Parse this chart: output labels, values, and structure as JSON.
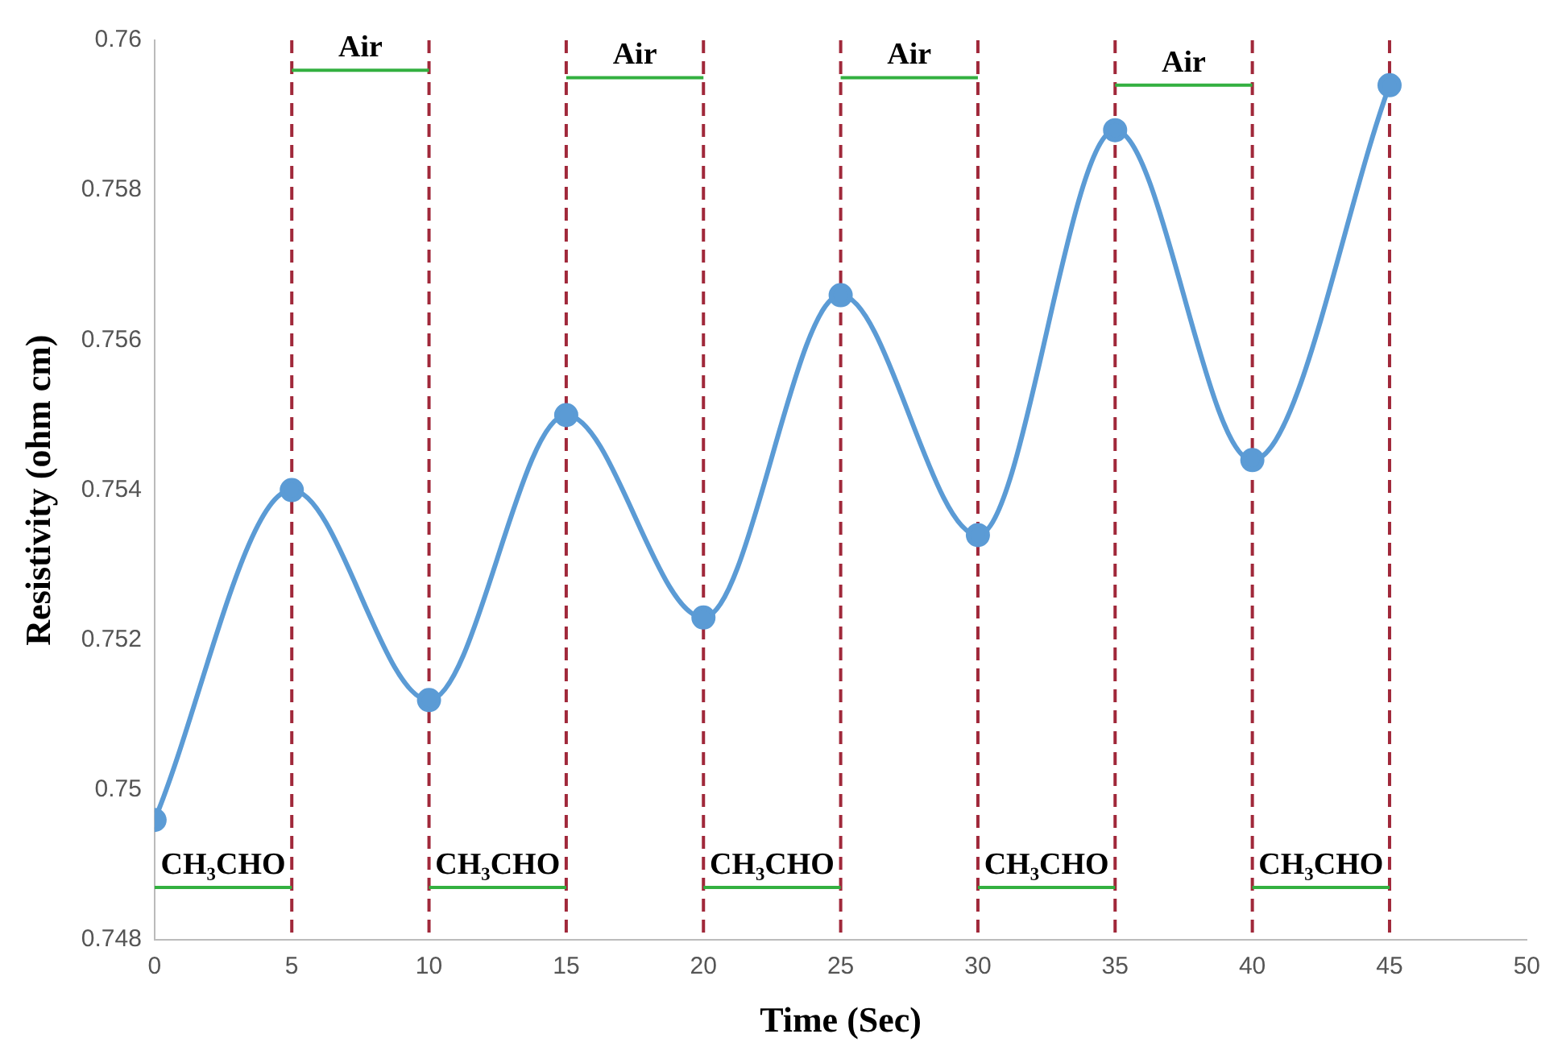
{
  "chart_data": {
    "type": "line",
    "xlabel": "Time (Sec)",
    "ylabel": "Resistivity (ohm cm)",
    "x": [
      0,
      5,
      10,
      15,
      20,
      25,
      30,
      35,
      40,
      45
    ],
    "series": [
      {
        "color": "#5b9bd5",
        "values": [
          0.7496,
          0.754,
          0.7512,
          0.755,
          0.7523,
          0.7566,
          0.7534,
          0.7588,
          0.7544,
          0.7594
        ]
      },
      {
        "color": "#33b040",
        "marker": "none",
        "x": [
          0,
          5
        ],
        "values": [
          0.7487,
          0.7487
        ]
      },
      {
        "color": "#33b040",
        "marker": "none",
        "x": [
          5,
          10
        ],
        "values": [
          0.7596,
          0.7596
        ]
      },
      {
        "color": "#33b040",
        "marker": "none",
        "x": [
          10,
          15
        ],
        "values": [
          0.7487,
          0.7487
        ]
      },
      {
        "color": "#33b040",
        "marker": "none",
        "x": [
          15,
          20
        ],
        "values": [
          0.7595,
          0.7595
        ]
      },
      {
        "color": "#33b040",
        "marker": "none",
        "x": [
          20,
          25
        ],
        "values": [
          0.7487,
          0.7487
        ]
      },
      {
        "color": "#33b040",
        "marker": "none",
        "x": [
          25,
          30
        ],
        "values": [
          0.7595,
          0.7595
        ]
      },
      {
        "color": "#33b040",
        "marker": "none",
        "x": [
          30,
          35
        ],
        "values": [
          0.7487,
          0.7487
        ]
      },
      {
        "color": "#33b040",
        "marker": "none",
        "x": [
          35,
          40
        ],
        "values": [
          0.7594,
          0.7594
        ]
      },
      {
        "color": "#33b040",
        "marker": "none",
        "x": [
          40,
          45
        ],
        "values": [
          0.7487,
          0.7487
        ]
      }
    ],
    "annotations": [
      {
        "text": "CH₃CHO",
        "x": 2.5,
        "y": 0.7487
      },
      {
        "text": "Air",
        "x": 7.5,
        "y": 0.7596
      },
      {
        "text": "CH₃CHO",
        "x": 12.5,
        "y": 0.7487
      },
      {
        "text": "Air",
        "x": 17.5,
        "y": 0.7595
      },
      {
        "text": "CH₃CHO",
        "x": 22.5,
        "y": 0.7487
      },
      {
        "text": "Air",
        "x": 27.5,
        "y": 0.7595
      },
      {
        "text": "CH₃CHO",
        "x": 32.5,
        "y": 0.7487
      },
      {
        "text": "Air",
        "x": 37.5,
        "y": 0.7594
      },
      {
        "text": "CH₃CHO",
        "x": 42.5,
        "y": 0.7487
      }
    ],
    "xlim": [
      0,
      50
    ],
    "xticks": [
      0,
      5,
      10,
      15,
      20,
      25,
      30,
      35,
      40,
      45,
      50
    ],
    "ylim": [
      0.748,
      0.76
    ],
    "yticks": [
      0.748,
      0.75,
      0.752,
      0.754,
      0.756,
      0.758,
      0.76
    ],
    "grid": false,
    "legend": false,
    "marker": "circle",
    "line_style": "solid",
    "ref_lines": [
      {
        "axis": "x",
        "value": 5,
        "color": "#a0283a",
        "line_style": "dashed"
      },
      {
        "axis": "x",
        "value": 10,
        "color": "#a0283a",
        "line_style": "dashed"
      },
      {
        "axis": "x",
        "value": 15,
        "color": "#a0283a",
        "line_style": "dashed"
      },
      {
        "axis": "x",
        "value": 20,
        "color": "#a0283a",
        "line_style": "dashed"
      },
      {
        "axis": "x",
        "value": 25,
        "color": "#a0283a",
        "line_style": "dashed"
      },
      {
        "axis": "x",
        "value": 30,
        "color": "#a0283a",
        "line_style": "dashed"
      },
      {
        "axis": "x",
        "value": 35,
        "color": "#a0283a",
        "line_style": "dashed"
      },
      {
        "axis": "x",
        "value": 40,
        "color": "#a0283a",
        "line_style": "dashed"
      },
      {
        "axis": "x",
        "value": 45,
        "color": "#a0283a",
        "line_style": "dashed"
      }
    ]
  }
}
